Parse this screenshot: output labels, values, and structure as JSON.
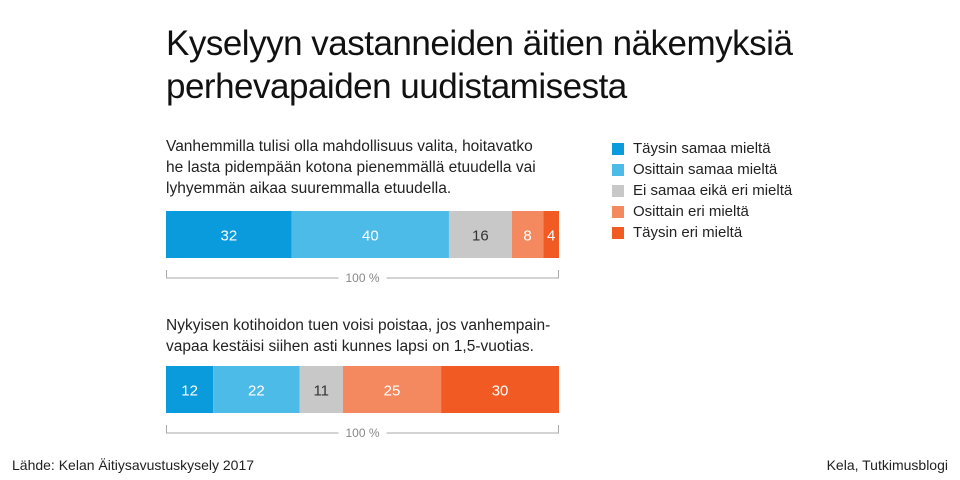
{
  "title_line1": "Kyselyyn vastanneiden äitien näkemyksiä",
  "title_line2": "perhevapaiden uudistamisesta",
  "legend": [
    {
      "label": "Täysin samaa mieltä",
      "color": "#0a9bdc"
    },
    {
      "label": "Osittain samaa mieltä",
      "color": "#4dbbe8"
    },
    {
      "label": "Ei samaa eikä eri mieltä",
      "color": "#c8c8c8"
    },
    {
      "label": "Osittain eri mieltä",
      "color": "#f4885e"
    },
    {
      "label": "Täysin eri mieltä",
      "color": "#f15a22"
    }
  ],
  "chart_data": [
    {
      "type": "bar",
      "orientation": "horizontal-stacked",
      "question_lines": [
        "Vanhemmilla tulisi olla mahdollisuus valita, hoitavatko",
        "he lasta pidempään kotona pienemmällä etuudella vai",
        "lyhyemmän aikaa suuremmalla etuudella."
      ],
      "values": [
        32,
        40,
        16,
        8,
        4
      ],
      "total_label": "100 %"
    },
    {
      "type": "bar",
      "orientation": "horizontal-stacked",
      "question_lines": [
        "Nykyisen kotihoidon tuen voisi poistaa, jos vanhempain-",
        "vapaa kestäisi siihen asti kunnes lapsi on 1,5-vuotias."
      ],
      "values": [
        12,
        22,
        11,
        25,
        30
      ],
      "total_label": "100 %"
    }
  ],
  "footer": {
    "source": "Lähde: Kelan Äitiysavustuskysely 2017",
    "credit": "Kela, Tutkimusblogi"
  }
}
